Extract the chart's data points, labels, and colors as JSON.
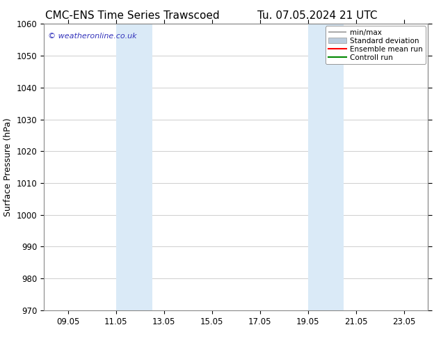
{
  "title_left": "CMC-ENS Time Series Trawscoed",
  "title_right": "Tu. 07.05.2024 21 UTC",
  "ylabel": "Surface Pressure (hPa)",
  "ylim": [
    970,
    1060
  ],
  "yticks": [
    970,
    980,
    990,
    1000,
    1010,
    1020,
    1030,
    1040,
    1050,
    1060
  ],
  "xtick_labels": [
    "09.05",
    "11.05",
    "13.05",
    "15.05",
    "17.05",
    "19.05",
    "21.05",
    "23.05"
  ],
  "xtick_positions": [
    1,
    3,
    5,
    7,
    9,
    11,
    13,
    15
  ],
  "xlim": [
    0,
    16
  ],
  "shaded_bands": [
    {
      "x_start": 3.0,
      "x_end": 4.5
    },
    {
      "x_start": 11.0,
      "x_end": 12.5
    }
  ],
  "shaded_color": "#daeaf7",
  "background_color": "#ffffff",
  "watermark_text": "© weatheronline.co.uk",
  "watermark_color": "#3333bb",
  "legend_entries": [
    {
      "label": "min/max"
    },
    {
      "label": "Standard deviation"
    },
    {
      "label": "Ensemble mean run"
    },
    {
      "label": "Controll run"
    }
  ],
  "minmax_color": "#999999",
  "stddev_color": "#bbccdd",
  "ensemble_color": "#ff0000",
  "control_color": "#008800",
  "grid_color": "#aaaaaa",
  "spine_color": "#888888",
  "tick_color": "#000000",
  "font_size_title": 11,
  "font_size_axis_label": 9,
  "font_size_tick": 8.5,
  "font_size_legend": 7.5,
  "font_size_watermark": 8
}
